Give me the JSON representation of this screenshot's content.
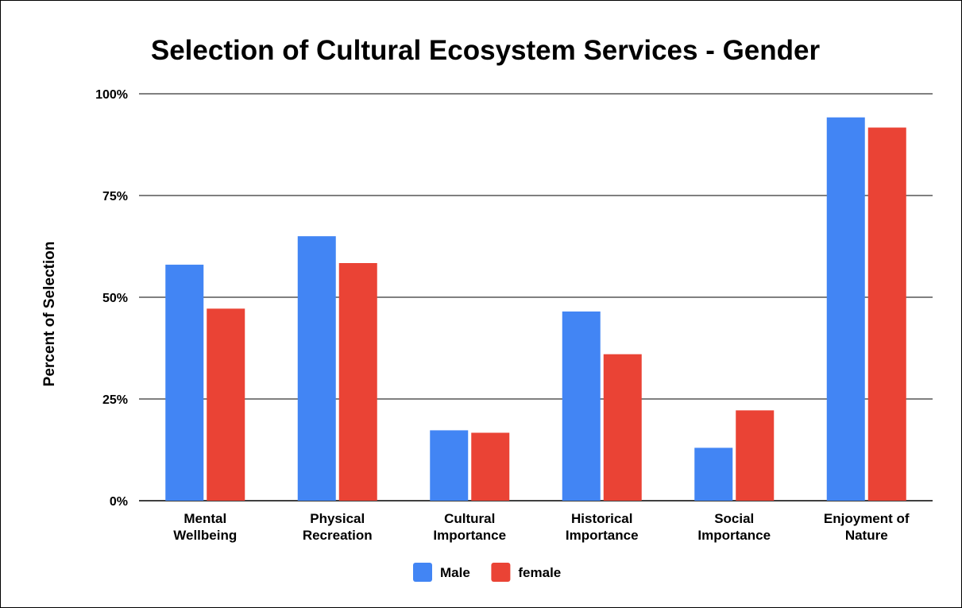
{
  "chart_data": {
    "type": "bar",
    "title": "Selection of Cultural Ecosystem Services - Gender",
    "ylabel": "Percent of Selection",
    "xlabel": "",
    "ylim": [
      0,
      100
    ],
    "yticks": [
      0,
      25,
      50,
      75,
      100
    ],
    "ytick_labels": [
      "0%",
      "25%",
      "50%",
      "75%",
      "100%"
    ],
    "grid": true,
    "legend_position": "bottom",
    "categories": [
      [
        "Mental",
        "Wellbeing"
      ],
      [
        "Physical",
        "Recreation"
      ],
      [
        "Cultural",
        "Importance"
      ],
      [
        "Historical",
        "Importance"
      ],
      [
        "Social",
        "Importance"
      ],
      [
        "Enjoyment of",
        "Nature"
      ]
    ],
    "series": [
      {
        "name": "Male",
        "color": "#4285f4",
        "values": [
          58,
          65,
          17.3,
          46.5,
          13,
          94.2
        ]
      },
      {
        "name": "female",
        "color": "#ea4335",
        "values": [
          47.2,
          58.4,
          16.7,
          36,
          22.2,
          91.7
        ]
      }
    ]
  }
}
